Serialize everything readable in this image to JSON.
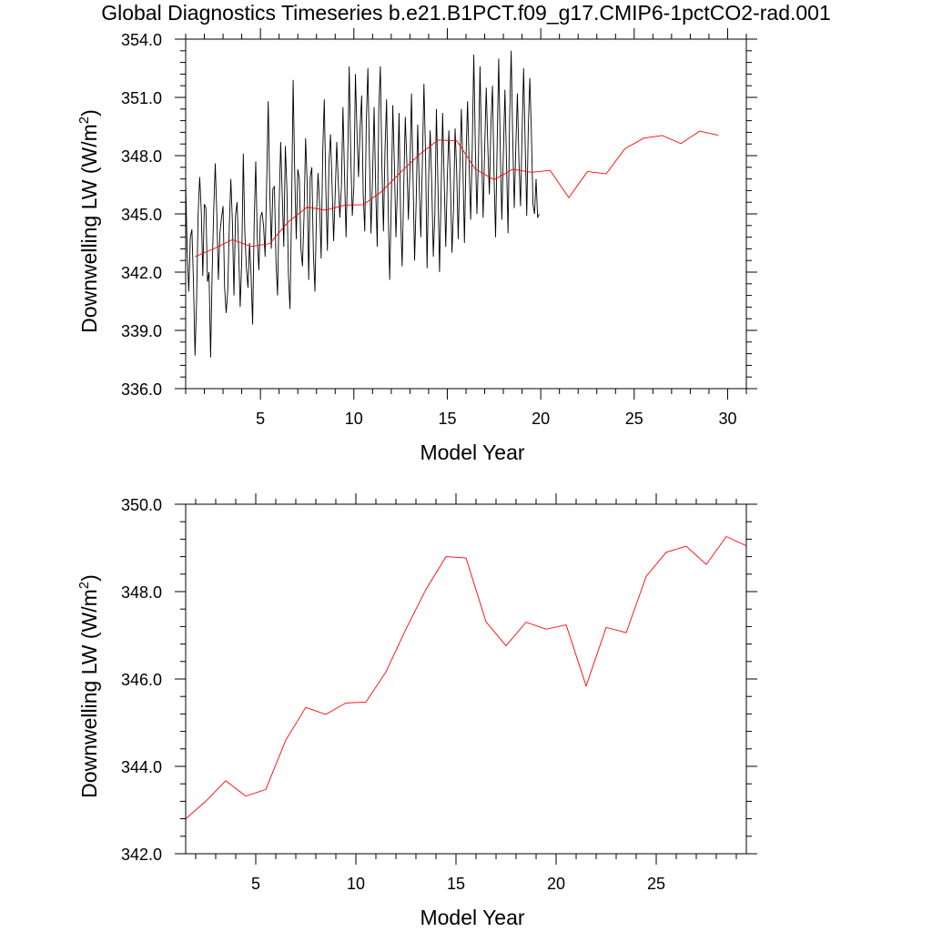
{
  "figure": {
    "title": "Global Diagnostics Timeseries b.e21.B1PCT.f09_g17.CMIP6-1pctCO2-rad.001"
  },
  "chart_data": [
    {
      "type": "line",
      "title": "",
      "xlabel": "Model Year",
      "ylabel_main": "Downwelling LW (W/m",
      "ylabel_sup": "2",
      "ylabel_end": ")",
      "xlim": [
        1,
        31
      ],
      "ylim": [
        336,
        354
      ],
      "xticks": [
        5,
        10,
        15,
        20,
        25,
        30
      ],
      "yticks": [
        336,
        339,
        342,
        345,
        348,
        351,
        354
      ],
      "ytick_labels": [
        "336.0",
        "339.0",
        "342.0",
        "345.0",
        "348.0",
        "351.0",
        "354.0"
      ],
      "grid": false,
      "series": [
        {
          "color": "#000000",
          "kind": "monthly",
          "x_start": 1.0,
          "x_step": 0.083333,
          "values": [
            346.6,
            343.0,
            341.0,
            343.8,
            344.2,
            341.5,
            337.7,
            340.5,
            345.0,
            346.9,
            345.2,
            341.8,
            345.5,
            345.3,
            341.5,
            342.0,
            337.6,
            342.0,
            345.2,
            347.6,
            345.0,
            341.6,
            344.0,
            344.8,
            345.4,
            341.2,
            339.9,
            341.0,
            344.3,
            346.8,
            344.6,
            340.8,
            344.9,
            345.6,
            343.2,
            340.2,
            342.6,
            348.1,
            344.0,
            342.2,
            341.2,
            343.5,
            341.8,
            339.3,
            344.6,
            347.7,
            343.7,
            342.1,
            344.8,
            345.1,
            344.4,
            342.8,
            346.5,
            350.8,
            346.2,
            343.2,
            346.3,
            346.4,
            342.5,
            340.8,
            345.4,
            348.7,
            346.0,
            343.3,
            348.5,
            346.3,
            341.8,
            340.1,
            345.2,
            351.9,
            347.2,
            343.7,
            347.3,
            346.8,
            343.2,
            342.3,
            344.9,
            348.9,
            346.6,
            341.6,
            346.9,
            347.4,
            343.0,
            341.0,
            345.0,
            347.1,
            345.5,
            342.7,
            348.2,
            350.9,
            346.3,
            343.1,
            347.6,
            349.1,
            346.5,
            343.6,
            346.0,
            348.7,
            346.6,
            344.8,
            346.4,
            350.5,
            347.0,
            343.8,
            347.6,
            352.6,
            348.0,
            344.9,
            346.4,
            352.2,
            349.2,
            346.9,
            349.4,
            351.1,
            346.0,
            344.1,
            349.8,
            352.5,
            347.9,
            344.0,
            346.9,
            350.5,
            346.3,
            343.3,
            350.4,
            352.6,
            347.5,
            344.1,
            348.3,
            350.9,
            345.5,
            341.6,
            345.5,
            350.6,
            347.6,
            343.8,
            346.4,
            350.2,
            345.0,
            342.3,
            346.2,
            350.0,
            347.7,
            344.7,
            347.3,
            351.2,
            346.8,
            342.6,
            345.6,
            349.6,
            346.4,
            343.8,
            347.7,
            351.7,
            348.2,
            342.2,
            346.8,
            349.3,
            346.6,
            342.8,
            345.0,
            350.4,
            346.4,
            342.0,
            346.1,
            350.2,
            346.7,
            343.3,
            346.9,
            349.3,
            346.6,
            343.0,
            345.3,
            349.4,
            347.2,
            343.7,
            347.2,
            350.4,
            347.5,
            343.5,
            347.9,
            350.8,
            347.6,
            344.7,
            348.3,
            353.2,
            348.4,
            345.0,
            347.9,
            352.6,
            348.3,
            344.8,
            348.4,
            351.5,
            348.5,
            346.0,
            349.6,
            351.6,
            347.0,
            343.8,
            348.6,
            353.0,
            348.4,
            344.7,
            348.1,
            351.4,
            347.7,
            344.0,
            349.9,
            353.4,
            348.9,
            345.3,
            348.5,
            351.2,
            347.7,
            345.4,
            349.1,
            352.5,
            348.6,
            344.9,
            349.4,
            352.0,
            349.1,
            345.5,
            345.0,
            346.8,
            344.8,
            345.0
          ]
        },
        {
          "color": "#ff0000",
          "kind": "annual",
          "x": [
            1.5,
            2.5,
            3.5,
            4.5,
            5.5,
            6.5,
            7.5,
            8.5,
            9.5,
            10.5,
            11.5,
            12.5,
            13.5,
            14.5,
            15.5,
            16.5,
            17.5,
            18.5,
            19.5,
            20.5,
            21.5,
            22.5,
            23.5,
            24.5,
            25.5,
            26.5,
            27.5,
            28.5,
            29.5
          ],
          "values": [
            342.8,
            343.2,
            343.67,
            343.32,
            343.47,
            344.6,
            345.35,
            345.19,
            345.45,
            345.47,
            346.16,
            347.14,
            348.05,
            348.8,
            348.77,
            347.31,
            346.76,
            347.3,
            347.14,
            347.24,
            345.84,
            347.18,
            347.06,
            348.35,
            348.9,
            349.04,
            348.62,
            349.26,
            349.05
          ]
        }
      ]
    },
    {
      "type": "line",
      "title": "",
      "xlabel": "Model Year",
      "ylabel_main": "Downwelling LW (W/m",
      "ylabel_sup": "2",
      "ylabel_end": ")",
      "xlim": [
        1.5,
        29.5
      ],
      "ylim": [
        342,
        350
      ],
      "xticks": [
        5,
        10,
        15,
        20,
        25
      ],
      "yticks": [
        342,
        344,
        346,
        348,
        350
      ],
      "ytick_labels": [
        "342.0",
        "344.0",
        "346.0",
        "348.0",
        "350.0"
      ],
      "grid": false,
      "series": [
        {
          "color": "#ff0000",
          "kind": "annual",
          "x": [
            1.5,
            2.5,
            3.5,
            4.5,
            5.5,
            6.5,
            7.5,
            8.5,
            9.5,
            10.5,
            11.5,
            12.5,
            13.5,
            14.5,
            15.5,
            16.5,
            17.5,
            18.5,
            19.5,
            20.5,
            21.5,
            22.5,
            23.5,
            24.5,
            25.5,
            26.5,
            27.5,
            28.5,
            29.5
          ],
          "values": [
            342.8,
            343.2,
            343.67,
            343.32,
            343.47,
            344.6,
            345.35,
            345.19,
            345.45,
            345.47,
            346.16,
            347.14,
            348.05,
            348.8,
            348.77,
            347.31,
            346.76,
            347.3,
            347.14,
            347.24,
            345.84,
            347.18,
            347.06,
            348.35,
            348.9,
            349.04,
            348.62,
            349.26,
            349.05
          ]
        }
      ]
    }
  ]
}
